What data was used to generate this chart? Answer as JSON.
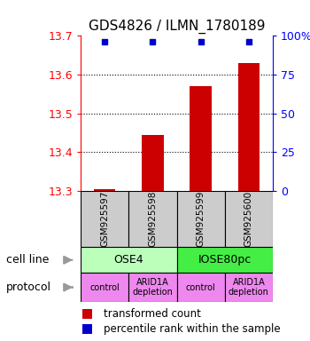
{
  "title": "GDS4826 / ILMN_1780189",
  "samples": [
    "GSM925597",
    "GSM925598",
    "GSM925599",
    "GSM925600"
  ],
  "bar_values": [
    13.305,
    13.445,
    13.57,
    13.63
  ],
  "bar_base": 13.3,
  "bar_color": "#cc0000",
  "dot_values": [
    13.685,
    13.685,
    13.685,
    13.685
  ],
  "dot_color": "#0000cc",
  "ylim": [
    13.3,
    13.7
  ],
  "left_yticks": [
    13.3,
    13.4,
    13.5,
    13.6,
    13.7
  ],
  "right_yticks": [
    0,
    25,
    50,
    75,
    100
  ],
  "right_ytick_labels": [
    "0",
    "25",
    "50",
    "75",
    "100%"
  ],
  "dotted_lines": [
    13.4,
    13.5,
    13.6
  ],
  "cell_line_labels": [
    "OSE4",
    "IOSE80pc"
  ],
  "cell_line_colors": [
    "#bbffbb",
    "#44ee44"
  ],
  "cell_line_spans": [
    [
      0,
      2
    ],
    [
      2,
      4
    ]
  ],
  "protocol_labels": [
    "control",
    "ARID1A\ndepletion",
    "control",
    "ARID1A\ndepletion"
  ],
  "protocol_color": "#ee88ee",
  "sample_box_color": "#cccccc",
  "legend_red_label": "transformed count",
  "legend_blue_label": "percentile rank within the sample",
  "cell_line_left_label": "cell line",
  "protocol_left_label": "protocol",
  "left_color": "#999999",
  "title_fontsize": 11,
  "tick_fontsize": 9,
  "sample_fontsize": 7.5,
  "bar_width": 0.45
}
